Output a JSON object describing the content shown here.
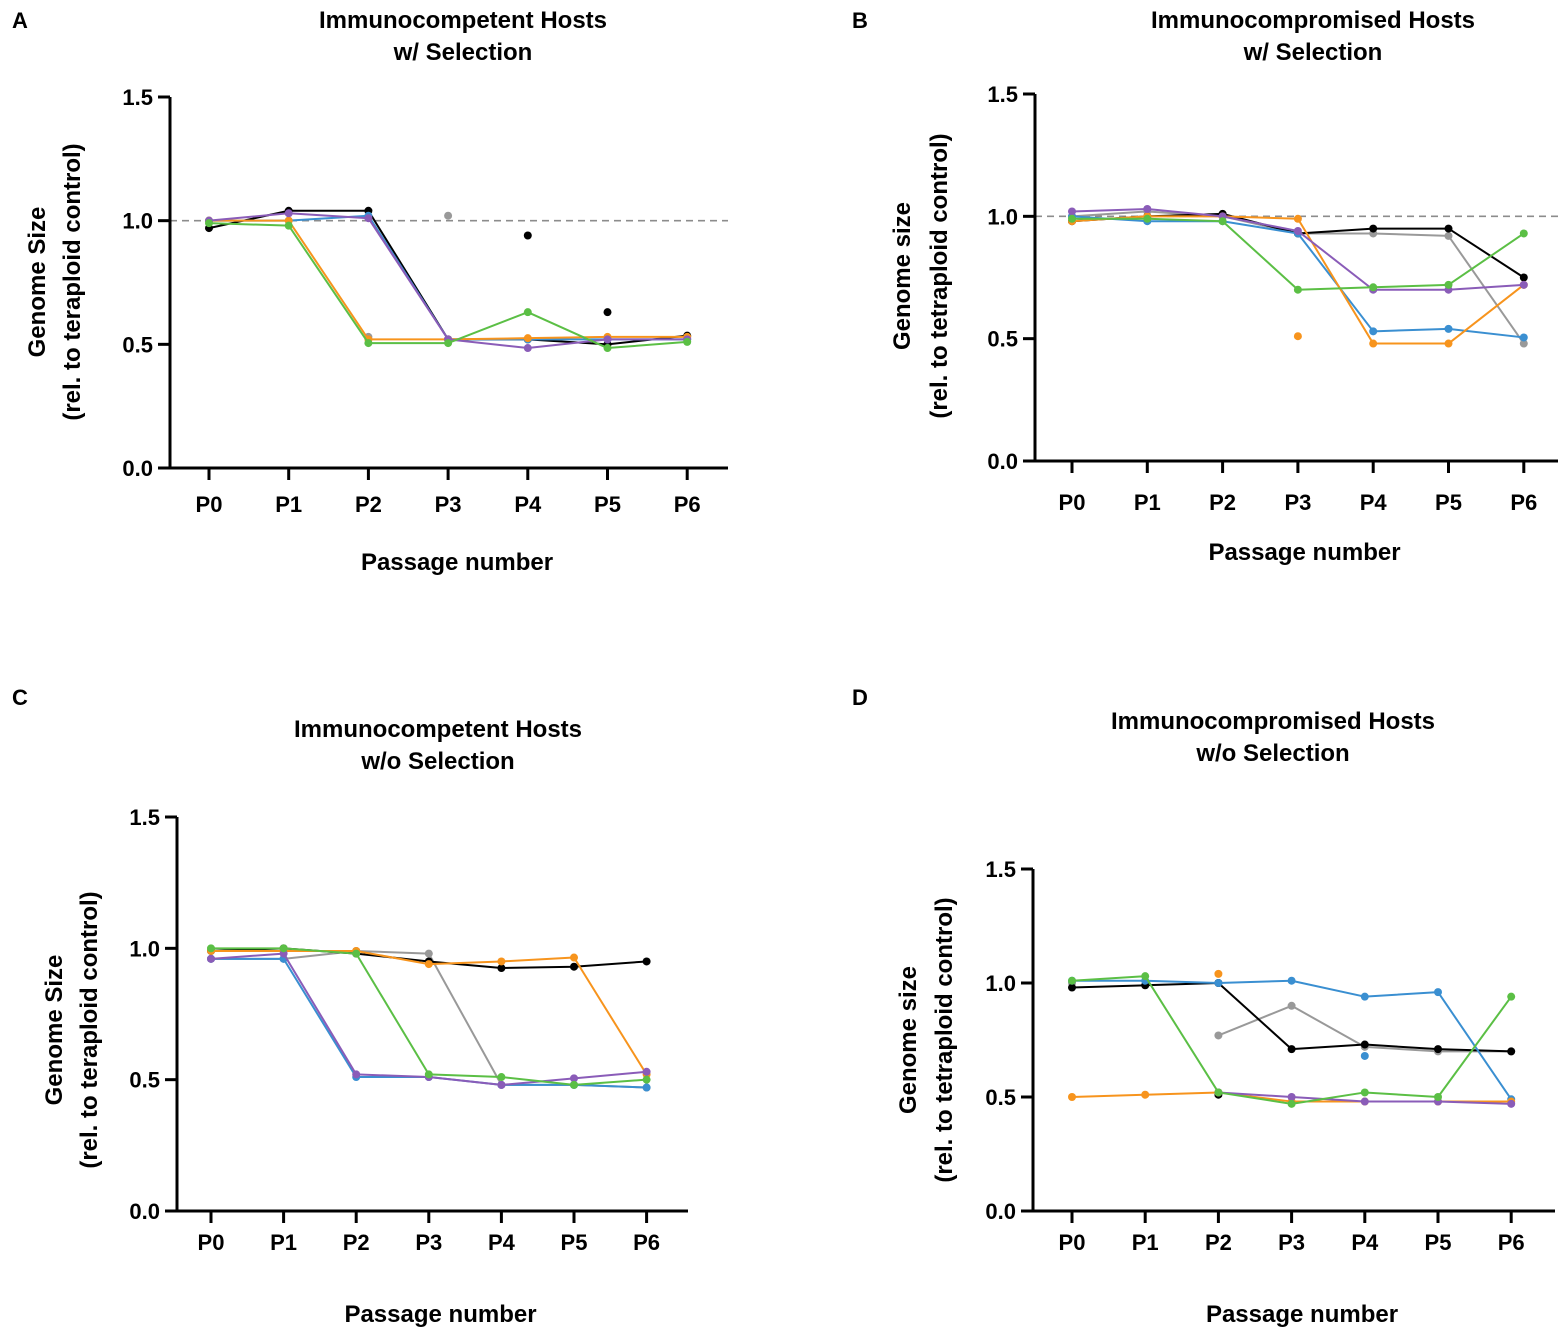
{
  "chart_data": [
    {
      "type": "line",
      "panel_label": "A",
      "title": [
        "Immunocompetent Hosts",
        "w/ Selection"
      ],
      "xlabel": "Passage number",
      "ylabel": [
        "Genome Size",
        "(rel. to teraploid control)"
      ],
      "categories": [
        "P0",
        "P1",
        "P2",
        "P3",
        "P4",
        "P5",
        "P6"
      ],
      "ylim": [
        0,
        1.5
      ],
      "yticks": [
        "0.0",
        "0.5",
        "1.0",
        "1.5"
      ],
      "reference_line": 1.0,
      "series": [
        {
          "name": "gray",
          "color": "#999999",
          "values": [
            1.0,
            null,
            0.53,
            null,
            null,
            null,
            0.53
          ],
          "extra_points": [
            [
              3,
              1.02
            ]
          ]
        },
        {
          "name": "black",
          "color": "#000000",
          "values": [
            0.97,
            1.04,
            1.04,
            0.52,
            0.52,
            0.5,
            0.535
          ],
          "extra_points": [
            [
              4,
              0.94
            ],
            [
              5,
              0.63
            ]
          ]
        },
        {
          "name": "blue",
          "color": "#3a8fd1",
          "values": [
            1.0,
            1.0,
            1.02,
            0.52,
            0.52,
            0.52,
            0.52
          ]
        },
        {
          "name": "orange",
          "color": "#f7941d",
          "values": [
            1.0,
            1.0,
            0.52,
            0.52,
            0.525,
            0.53,
            0.53
          ]
        },
        {
          "name": "purple",
          "color": "#8a5cb8",
          "values": [
            1.0,
            1.03,
            1.01,
            0.52,
            0.485,
            0.52,
            0.52
          ]
        },
        {
          "name": "green",
          "color": "#5bbf45",
          "values": [
            0.99,
            0.98,
            0.505,
            0.505,
            0.63,
            0.485,
            0.51
          ]
        }
      ]
    },
    {
      "type": "line",
      "panel_label": "B",
      "title": [
        "Immunocompromised Hosts",
        "w/ Selection"
      ],
      "xlabel": "Passage number",
      "ylabel": [
        "Genome size",
        "(rel. to tetraploid control)"
      ],
      "categories": [
        "P0",
        "P1",
        "P2",
        "P3",
        "P4",
        "P5",
        "P6"
      ],
      "ylim": [
        0,
        1.5
      ],
      "yticks": [
        "0.0",
        "0.5",
        "1.0",
        "1.5"
      ],
      "reference_line": 1.0,
      "series": [
        {
          "name": "gray",
          "color": "#999999",
          "values": [
            1.0,
            1.02,
            1.0,
            0.93,
            0.93,
            0.92,
            0.48
          ]
        },
        {
          "name": "black",
          "color": "#000000",
          "values": [
            0.98,
            1.0,
            1.01,
            0.93,
            0.95,
            0.95,
            0.75
          ]
        },
        {
          "name": "blue",
          "color": "#3a8fd1",
          "values": [
            1.0,
            0.98,
            0.98,
            0.93,
            0.53,
            0.54,
            0.505
          ]
        },
        {
          "name": "orange",
          "color": "#f7941d",
          "values": [
            0.98,
            1.0,
            1.0,
            0.99,
            0.48,
            0.48,
            0.72
          ],
          "extra_points": [
            [
              3,
              0.51
            ]
          ]
        },
        {
          "name": "purple",
          "color": "#8a5cb8",
          "values": [
            1.02,
            1.03,
            1.0,
            0.94,
            0.7,
            0.7,
            0.72
          ]
        },
        {
          "name": "green",
          "color": "#5bbf45",
          "values": [
            0.99,
            0.99,
            0.98,
            0.7,
            0.71,
            0.72,
            0.93
          ]
        }
      ]
    },
    {
      "type": "line",
      "panel_label": "C",
      "title": [
        "Immunocompetent Hosts",
        "w/o Selection"
      ],
      "xlabel": "Passage number",
      "ylabel": [
        "Genome Size",
        "(rel. to teraploid control)"
      ],
      "categories": [
        "P0",
        "P1",
        "P2",
        "P3",
        "P4",
        "P5",
        "P6"
      ],
      "ylim": [
        0,
        1.5
      ],
      "yticks": [
        "0.0",
        "0.5",
        "1.0",
        "1.5"
      ],
      "series": [
        {
          "name": "gray",
          "color": "#999999",
          "values": [
            0.96,
            0.96,
            0.99,
            0.98,
            0.48,
            0.48,
            0.47
          ]
        },
        {
          "name": "black",
          "color": "#000000",
          "values": [
            0.99,
            1.0,
            0.98,
            0.95,
            0.925,
            0.93,
            0.95
          ]
        },
        {
          "name": "orange",
          "color": "#f7941d",
          "values": [
            0.99,
            0.99,
            0.99,
            0.94,
            0.95,
            0.965,
            0.52
          ]
        },
        {
          "name": "blue",
          "color": "#3a8fd1",
          "values": [
            0.96,
            0.96,
            0.51,
            0.51,
            0.48,
            0.48,
            0.47
          ]
        },
        {
          "name": "purple",
          "color": "#8a5cb8",
          "values": [
            0.96,
            0.98,
            0.52,
            0.51,
            0.48,
            0.505,
            0.53
          ]
        },
        {
          "name": "green",
          "color": "#5bbf45",
          "values": [
            1.0,
            1.0,
            0.98,
            0.52,
            0.51,
            0.48,
            0.5
          ]
        }
      ]
    },
    {
      "type": "line",
      "panel_label": "D",
      "title": [
        "Immunocompromised Hosts",
        "w/o Selection"
      ],
      "xlabel": "Passage number",
      "ylabel": [
        "Genome size",
        "(rel. to tetraploid control)"
      ],
      "categories": [
        "P0",
        "P1",
        "P2",
        "P3",
        "P4",
        "P5",
        "P6"
      ],
      "ylim": [
        0,
        1.5
      ],
      "yticks": [
        "0.0",
        "0.5",
        "1.0",
        "1.5"
      ],
      "series": [
        {
          "name": "gray",
          "color": "#999999",
          "values": [
            1.0,
            null,
            0.77,
            0.9,
            0.72,
            0.7,
            0.7
          ]
        },
        {
          "name": "black",
          "color": "#000000",
          "values": [
            0.98,
            0.99,
            1.0,
            0.71,
            0.73,
            0.71,
            0.7
          ],
          "extra_points": [
            [
              2,
              0.51
            ]
          ]
        },
        {
          "name": "blue",
          "color": "#3a8fd1",
          "values": [
            1.01,
            1.01,
            1.0,
            1.01,
            0.94,
            0.96,
            0.49
          ],
          "extra_points": [
            [
              4,
              0.68
            ]
          ]
        },
        {
          "name": "orange",
          "color": "#f7941d",
          "values": [
            0.5,
            0.51,
            0.52,
            0.48,
            0.48,
            0.48,
            0.48
          ],
          "extra_points": [
            [
              2,
              1.04
            ]
          ]
        },
        {
          "name": "purple",
          "color": "#8a5cb8",
          "values": [
            null,
            null,
            0.52,
            0.5,
            0.48,
            0.48,
            0.47
          ]
        },
        {
          "name": "green",
          "color": "#5bbf45",
          "values": [
            1.01,
            1.03,
            0.52,
            0.47,
            0.52,
            0.5,
            0.94
          ]
        }
      ]
    }
  ]
}
